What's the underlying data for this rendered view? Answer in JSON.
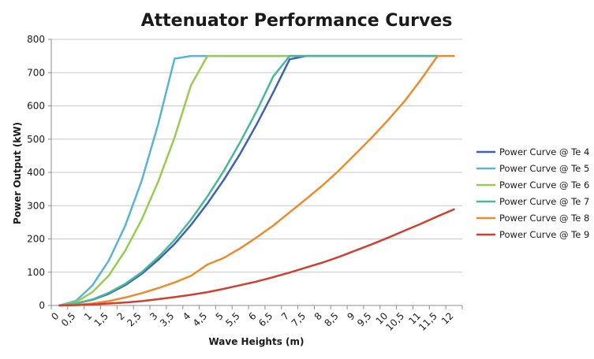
{
  "chart_data": {
    "type": "line",
    "title": "Attenuator Performance Curves",
    "xlabel": "Wave Heights (m)",
    "ylabel": "Power Output (kW)",
    "ylim": [
      0,
      800
    ],
    "yticks": [
      0,
      100,
      200,
      300,
      400,
      500,
      600,
      700,
      800
    ],
    "grid": true,
    "legend_position": "right",
    "categories": [
      "0",
      "0,5",
      "1",
      "1,5",
      "2",
      "2,5",
      "3",
      "3,5",
      "4",
      "4,5",
      "5",
      "5,5",
      "6",
      "6,5",
      "7",
      "7,5",
      "8",
      "8,5",
      "9",
      "9,5",
      "10",
      "10,5",
      "11",
      "11,5",
      "12"
    ],
    "series": [
      {
        "name": "Power Curve @ Te 4",
        "color": "#4060b0",
        "values": [
          0,
          6,
          17,
          35,
          61,
          95,
          137,
          185,
          242,
          307,
          378,
          457,
          545,
          640,
          740,
          750,
          750,
          750,
          750,
          750,
          750,
          750,
          750,
          750,
          null
        ]
      },
      {
        "name": "Power Curve @ Te 5",
        "color": "#58b4d4",
        "values": [
          0,
          14,
          60,
          135,
          240,
          375,
          545,
          742,
          750,
          750,
          750,
          750,
          750,
          750,
          750,
          750,
          750,
          750,
          750,
          750,
          750,
          750,
          750,
          750,
          null
        ]
      },
      {
        "name": "Power Curve @ Te 6",
        "color": "#98cc50",
        "values": [
          0,
          10,
          40,
          90,
          165,
          258,
          372,
          505,
          662,
          750,
          750,
          750,
          750,
          750,
          750,
          750,
          750,
          750,
          750,
          750,
          750,
          750,
          750,
          750,
          null
        ]
      },
      {
        "name": "Power Curve @ Te 7",
        "color": "#48b89c",
        "values": [
          0,
          6,
          18,
          38,
          65,
          100,
          145,
          197,
          258,
          328,
          405,
          492,
          585,
          688,
          750,
          750,
          750,
          750,
          750,
          750,
          750,
          750,
          750,
          750,
          null
        ]
      },
      {
        "name": "Power Curve @ Te 8",
        "color": "#ec8a2c",
        "values": [
          0,
          2,
          6,
          13,
          24,
          37,
          52,
          69,
          89,
          123,
          143,
          172,
          205,
          240,
          280,
          320,
          361,
          406,
          455,
          505,
          558,
          615,
          680,
          750,
          750
        ]
      },
      {
        "name": "Power Curve @ Te 9",
        "color": "#d04030",
        "values": [
          0,
          1,
          3,
          6,
          9,
          13,
          19,
          25,
          32,
          40,
          50,
          61,
          72,
          85,
          99,
          114,
          129,
          146,
          165,
          184,
          204,
          225,
          246,
          268,
          289
        ]
      }
    ]
  }
}
